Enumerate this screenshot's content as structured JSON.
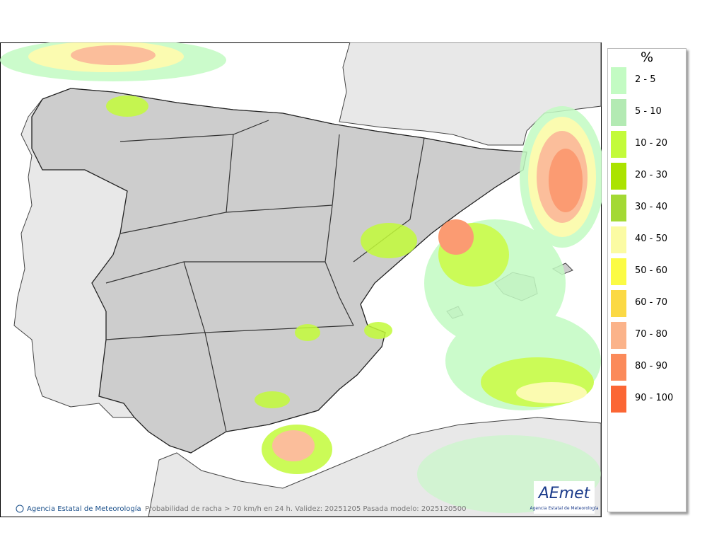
{
  "legend": {
    "title": "%",
    "items": [
      {
        "label": "2 - 5",
        "color": "#c3fbc3"
      },
      {
        "label": "5 - 10",
        "color": "#b3eab3"
      },
      {
        "label": "10 - 20",
        "color": "#c3fb3a"
      },
      {
        "label": "20 - 30",
        "color": "#abe300"
      },
      {
        "label": "30 - 40",
        "color": "#a3d934"
      },
      {
        "label": "40 - 50",
        "color": "#fbfba3"
      },
      {
        "label": "50 - 60",
        "color": "#fbfb45"
      },
      {
        "label": "60 - 70",
        "color": "#fbd945"
      },
      {
        "label": "70 - 80",
        "color": "#fbb38a"
      },
      {
        "label": "80 - 90",
        "color": "#fb8a5a"
      },
      {
        "label": "90 - 100",
        "color": "#fb6634"
      }
    ]
  },
  "footer": {
    "agency": "Agencia Estatal de Meteorología",
    "caption": "Probabilidad de racha > 70 km/h en 24 h. Validez: 20251205 Pasada modelo: 2025120500"
  },
  "logo": {
    "name": "AEmet",
    "subtitle": "Agencia Estatal de Meteorología"
  }
}
